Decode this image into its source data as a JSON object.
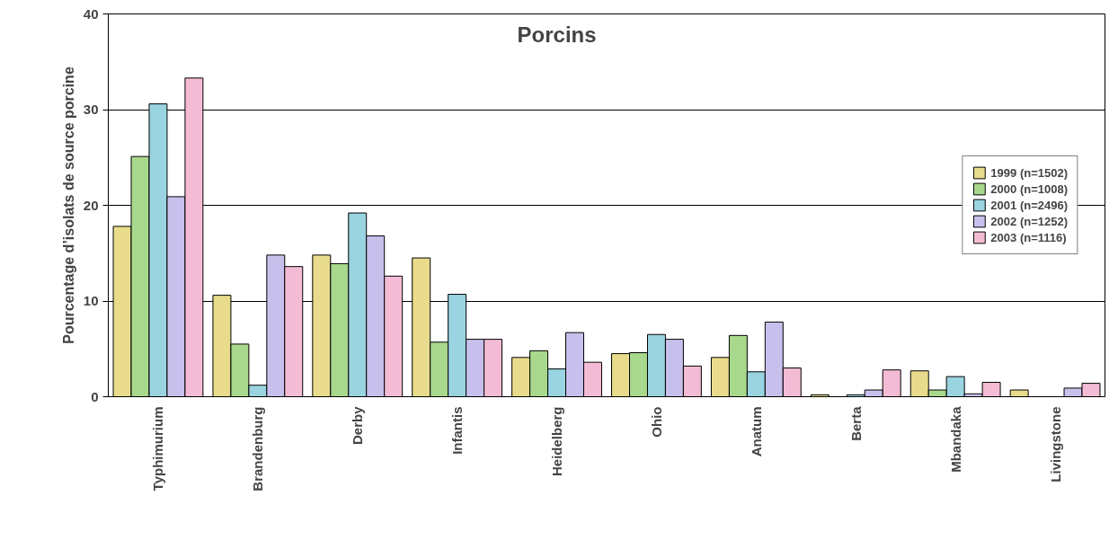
{
  "chart_data": {
    "type": "bar",
    "title": "Porcins",
    "ylabel": "Pourcentage d’isolats de source porcine",
    "categories": [
      "Typhimurium",
      "Brandenburg",
      "Derby",
      "Infantis",
      "Heidelberg",
      "Ohio",
      "Anatum",
      "Berta",
      "Mbandaka",
      "Livingstone"
    ],
    "series": [
      {
        "name": "1999 (n=1502)",
        "color": "#e8dc8c",
        "values": [
          17.8,
          10.6,
          14.8,
          14.5,
          4.1,
          4.5,
          4.1,
          0.2,
          2.7,
          0.7
        ]
      },
      {
        "name": "2000 (n=1008)",
        "color": "#a8d88c",
        "values": [
          25.1,
          5.5,
          13.9,
          5.7,
          4.8,
          4.6,
          6.4,
          null,
          0.7,
          null
        ]
      },
      {
        "name": "2001 (n=2496)",
        "color": "#99d4e0",
        "values": [
          30.6,
          1.2,
          19.2,
          10.7,
          2.9,
          6.5,
          2.6,
          0.2,
          2.1,
          null
        ]
      },
      {
        "name": "2002 (n=1252)",
        "color": "#c8c0ec",
        "values": [
          20.9,
          14.8,
          16.8,
          6.0,
          6.7,
          6.0,
          7.8,
          0.7,
          0.3,
          0.9
        ]
      },
      {
        "name": "2003 (n=1116)",
        "color": "#f4bcd4",
        "values": [
          33.3,
          13.6,
          12.6,
          6.0,
          3.6,
          3.2,
          3.0,
          2.8,
          1.5,
          1.4
        ]
      }
    ],
    "ylim": [
      0,
      40
    ],
    "yticks": [
      0,
      10,
      20,
      30,
      40
    ],
    "grid": "y",
    "legend": "right"
  }
}
